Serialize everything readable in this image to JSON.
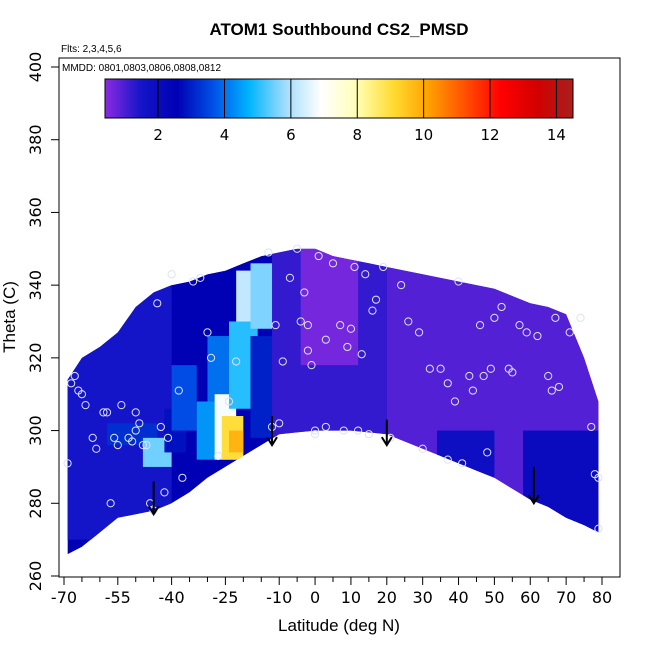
{
  "chart_data": {
    "type": "heatmap",
    "title": "ATOM1 Southbound CS2_PMSD",
    "annotations": {
      "flights": "Flts: 2,3,4,5,6",
      "dates": "MMDD: 0801,0803,0806,0808,0812"
    },
    "xlabel": "Latitude (deg N)",
    "ylabel": "Theta (C)",
    "xlim": [
      -70,
      80
    ],
    "ylim": [
      260,
      400
    ],
    "x_major_ticks": [
      -70,
      -55,
      -40,
      -25,
      -10,
      0,
      10,
      20,
      30,
      40,
      50,
      60,
      70,
      80
    ],
    "x_minor_ticks": [
      -65,
      -60,
      -50,
      -45,
      -35,
      -30,
      -20,
      -15,
      -5,
      5,
      15,
      25,
      35,
      45,
      55,
      65,
      75
    ],
    "y_ticks": [
      260,
      280,
      300,
      320,
      340,
      360,
      380,
      400
    ],
    "colorbar": {
      "range": [
        0.4,
        14.5
      ],
      "ticks": [
        2,
        4,
        6,
        8,
        10,
        12,
        14
      ],
      "colors": [
        "#8b2be2",
        "#1414c8",
        "#0000b4",
        "#0050e6",
        "#00b4ff",
        "#a0dcff",
        "#ffffff",
        "#ffffb4",
        "#ffdc32",
        "#ffa000",
        "#ff5000",
        "#ff0000",
        "#d20000",
        "#aa1e1e"
      ]
    },
    "field": {
      "lat": [
        -69,
        -65,
        -60,
        -55,
        -50,
        -45,
        -40,
        -35,
        -30,
        -25,
        -20,
        -15,
        -10,
        -5,
        0,
        5,
        10,
        15,
        20,
        25,
        30,
        35,
        40,
        45,
        50,
        55,
        60,
        65,
        70,
        75,
        79
      ],
      "theta_bottom": [
        266,
        268,
        272,
        276,
        277,
        278,
        280,
        283,
        287,
        290,
        293,
        296,
        299,
        299.5,
        300,
        300,
        300,
        299.5,
        299,
        297,
        295,
        293,
        291,
        289,
        287,
        284,
        281,
        279,
        276,
        274,
        272
      ],
      "theta_top": [
        314,
        320,
        323,
        327,
        334,
        338,
        340,
        341,
        343,
        344,
        346,
        348,
        349,
        350,
        350,
        348,
        347,
        346,
        345,
        344,
        343,
        342,
        341,
        340,
        339,
        337,
        335,
        334,
        332,
        320,
        308
      ],
      "cells": [
        {
          "lat": [
            -70,
            -40
          ],
          "theta": [
            270,
            340
          ],
          "value": 1.5
        },
        {
          "lat": [
            -58,
            -44
          ],
          "theta": [
            296,
            302
          ],
          "value": 3.2
        },
        {
          "lat": [
            -48,
            -40
          ],
          "theta": [
            290,
            298
          ],
          "value": 5.5
        },
        {
          "lat": [
            -42,
            -36
          ],
          "theta": [
            294,
            306
          ],
          "value": 2.8
        },
        {
          "lat": [
            -40,
            -33
          ],
          "theta": [
            300,
            318
          ],
          "value": 3.6
        },
        {
          "lat": [
            -33,
            -27
          ],
          "theta": [
            292,
            308
          ],
          "value": 4.4
        },
        {
          "lat": [
            -30,
            -24
          ],
          "theta": [
            308,
            326
          ],
          "value": 4.0
        },
        {
          "lat": [
            -28,
            -22
          ],
          "theta": [
            292,
            310
          ],
          "value": 6.8
        },
        {
          "lat": [
            -26,
            -20
          ],
          "theta": [
            292,
            304
          ],
          "value": 9.0
        },
        {
          "lat": [
            -24,
            -20
          ],
          "theta": [
            294,
            300
          ],
          "value": 9.8
        },
        {
          "lat": [
            -24,
            -16
          ],
          "theta": [
            306,
            330
          ],
          "value": 5.0
        },
        {
          "lat": [
            -22,
            -16
          ],
          "theta": [
            330,
            344
          ],
          "value": 6.2
        },
        {
          "lat": [
            -18,
            -10
          ],
          "theta": [
            328,
            346
          ],
          "value": 5.6
        },
        {
          "lat": [
            -18,
            -12
          ],
          "theta": [
            298,
            326
          ],
          "value": 3.0
        },
        {
          "lat": [
            -12,
            20
          ],
          "theta": [
            296,
            350
          ],
          "value": 1.2
        },
        {
          "lat": [
            -4,
            12
          ],
          "theta": [
            318,
            350
          ],
          "value": 0.6
        },
        {
          "lat": [
            20,
            80
          ],
          "theta": [
            272,
            345
          ],
          "value": 0.9
        },
        {
          "lat": [
            34,
            50
          ],
          "theta": [
            284,
            300
          ],
          "value": 1.8
        },
        {
          "lat": [
            58,
            80
          ],
          "theta": [
            272,
            300
          ],
          "value": 2.0
        }
      ]
    },
    "sample_points": [
      [
        -69,
        291
      ],
      [
        -68,
        313
      ],
      [
        -67,
        315
      ],
      [
        -66,
        311
      ],
      [
        -65,
        310
      ],
      [
        -64,
        307
      ],
      [
        -62,
        298
      ],
      [
        -61,
        295
      ],
      [
        -59,
        305
      ],
      [
        -58,
        305
      ],
      [
        -57,
        280
      ],
      [
        -56,
        298
      ],
      [
        -55,
        296
      ],
      [
        -54,
        307
      ],
      [
        -52,
        298
      ],
      [
        -51,
        297
      ],
      [
        -50,
        305
      ],
      [
        -50,
        300
      ],
      [
        -49,
        302
      ],
      [
        -48,
        296
      ],
      [
        -47,
        296
      ],
      [
        -46,
        280
      ],
      [
        -45,
        278
      ],
      [
        -44,
        335
      ],
      [
        -43,
        301
      ],
      [
        -42,
        283
      ],
      [
        -41,
        298
      ],
      [
        -40,
        343
      ],
      [
        -38,
        311
      ],
      [
        -37,
        287
      ],
      [
        -34,
        341
      ],
      [
        -32,
        342
      ],
      [
        -30,
        327
      ],
      [
        -29,
        320
      ],
      [
        -27,
        293
      ],
      [
        -24,
        308
      ],
      [
        -22,
        319
      ],
      [
        -13,
        349
      ],
      [
        -12,
        301
      ],
      [
        -11,
        329
      ],
      [
        -10,
        302
      ],
      [
        -9,
        319
      ],
      [
        -7,
        342
      ],
      [
        -5,
        350
      ],
      [
        -4,
        330
      ],
      [
        -3,
        338
      ],
      [
        -2,
        329
      ],
      [
        -2,
        322
      ],
      [
        -1,
        318
      ],
      [
        0,
        300
      ],
      [
        0,
        299
      ],
      [
        1,
        348
      ],
      [
        3,
        301
      ],
      [
        3,
        325
      ],
      [
        5,
        346
      ],
      [
        7,
        329
      ],
      [
        8,
        300
      ],
      [
        9,
        323
      ],
      [
        10,
        328
      ],
      [
        11,
        345
      ],
      [
        12,
        300
      ],
      [
        13,
        321
      ],
      [
        14,
        343
      ],
      [
        15,
        299
      ],
      [
        16,
        333
      ],
      [
        17,
        336
      ],
      [
        19,
        345
      ],
      [
        21,
        298
      ],
      [
        24,
        340
      ],
      [
        26,
        330
      ],
      [
        29,
        327
      ],
      [
        30,
        295
      ],
      [
        32,
        317
      ],
      [
        35,
        317
      ],
      [
        37,
        313
      ],
      [
        37,
        292
      ],
      [
        39,
        308
      ],
      [
        40,
        341
      ],
      [
        41,
        291
      ],
      [
        43,
        315
      ],
      [
        44,
        311
      ],
      [
        46,
        329
      ],
      [
        47,
        315
      ],
      [
        48,
        294
      ],
      [
        49,
        317
      ],
      [
        50,
        331
      ],
      [
        52,
        334
      ],
      [
        54,
        317
      ],
      [
        55,
        316
      ],
      [
        57,
        329
      ],
      [
        59,
        327
      ],
      [
        62,
        326
      ],
      [
        65,
        315
      ],
      [
        66,
        311
      ],
      [
        67,
        331
      ],
      [
        68,
        312
      ],
      [
        71,
        327
      ],
      [
        74,
        331
      ],
      [
        77,
        301
      ],
      [
        78,
        288
      ],
      [
        79,
        287
      ],
      [
        79,
        273
      ]
    ],
    "arrows": [
      {
        "lat": -45,
        "theta_top": 286,
        "theta_tip": 277
      },
      {
        "lat": -12,
        "theta_top": 304,
        "theta_tip": 296
      },
      {
        "lat": 20,
        "theta_top": 303,
        "theta_tip": 296
      },
      {
        "lat": 61,
        "theta_top": 290,
        "theta_tip": 280
      }
    ],
    "legend": "top colorbar",
    "grid": false
  }
}
